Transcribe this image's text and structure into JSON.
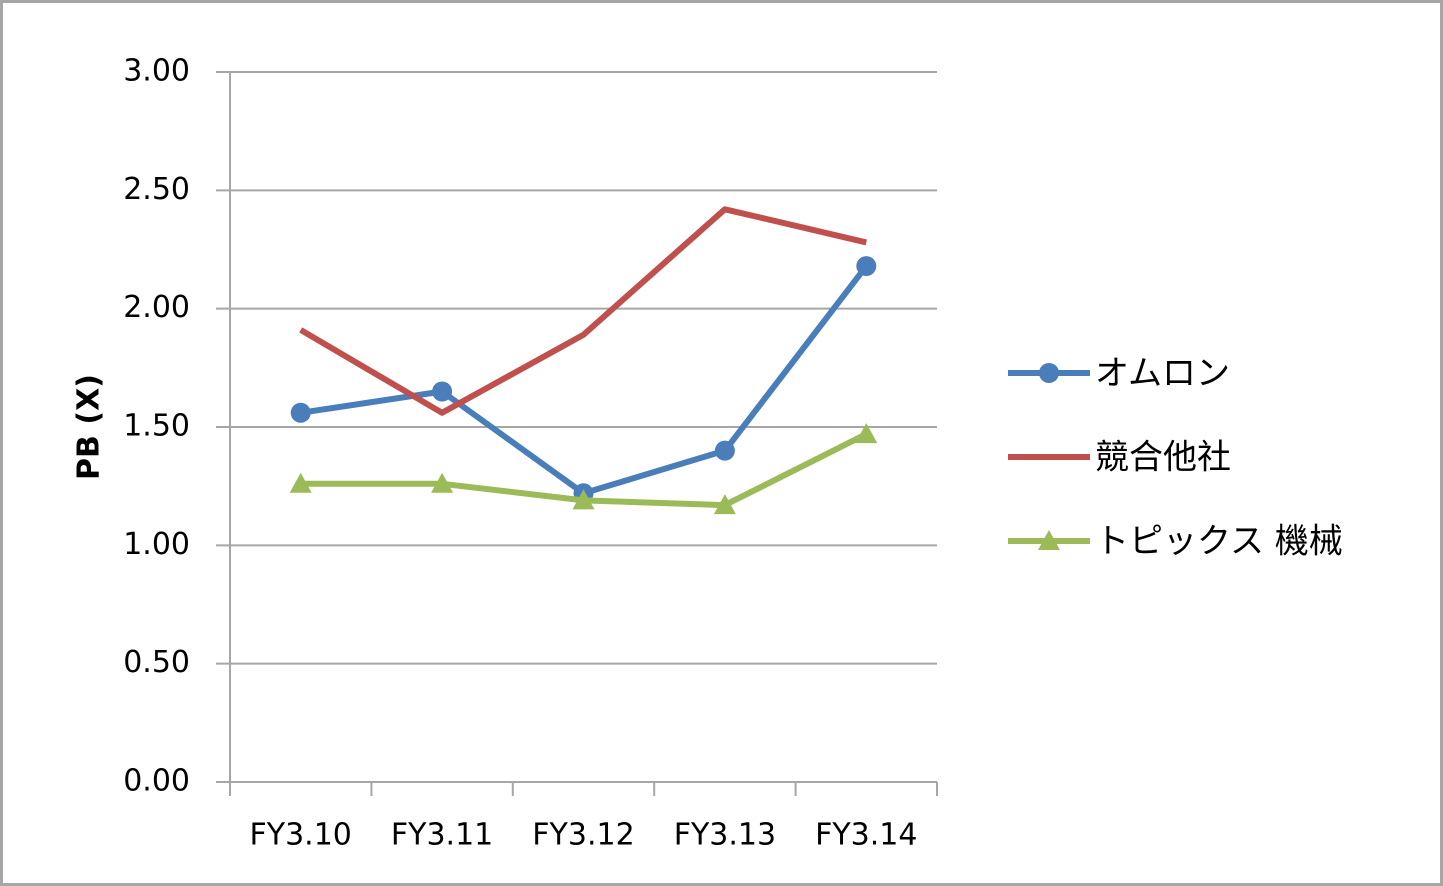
{
  "chart_data": {
    "type": "line",
    "y_label": "PB (X)",
    "categories": [
      "FY3.10",
      "FY3.11",
      "FY3.12",
      "FY3.13",
      "FY3.14"
    ],
    "series": [
      {
        "name": "オムロン",
        "color": "#4a7ebb",
        "marker": "circle",
        "values": [
          1.56,
          1.65,
          1.22,
          1.4,
          2.18
        ]
      },
      {
        "name": "競合他社",
        "color": "#c0504d",
        "marker": "none",
        "values": [
          1.91,
          1.56,
          1.89,
          2.42,
          2.28
        ]
      },
      {
        "name": "トピックス 機械",
        "color": "#9bbb59",
        "marker": "triangle",
        "values": [
          1.26,
          1.26,
          1.19,
          1.17,
          1.47
        ]
      }
    ],
    "ylim": [
      0,
      3
    ],
    "yticks": [
      {
        "value": 0,
        "label": "0.00"
      },
      {
        "value": 0.5,
        "label": "0.50"
      },
      {
        "value": 1,
        "label": "1.00"
      },
      {
        "value": 1.5,
        "label": "1.50"
      },
      {
        "value": 2,
        "label": "2.00"
      },
      {
        "value": 2.5,
        "label": "2.50"
      },
      {
        "value": 3,
        "label": "3.00"
      }
    ],
    "grid": true,
    "legend": "right"
  }
}
